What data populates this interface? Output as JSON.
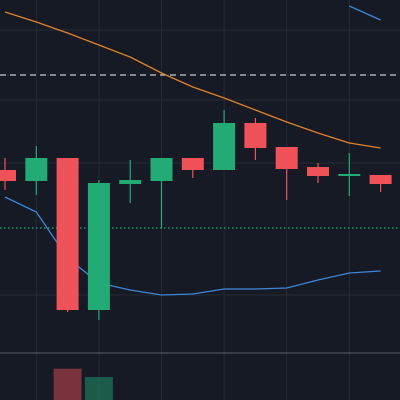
{
  "chart_data": {
    "type": "candlestick",
    "background": "#161a25",
    "grid": true,
    "grid_color": "#262a35",
    "categories": [
      null,
      null,
      null,
      null,
      null,
      null,
      null,
      null,
      null,
      null,
      null,
      null,
      null
    ],
    "ylim": [
      0,
      400
    ],
    "yticks": [
      370,
      300,
      237,
      105
    ],
    "up_color": "#22ab75",
    "down_color": "#f0525a",
    "open": [
      230,
      219,
      242,
      90,
      216,
      219,
      242,
      230,
      277,
      253,
      233,
      224,
      225
    ],
    "high": [
      242,
      254,
      242,
      220,
      240,
      242,
      242,
      290,
      282,
      253,
      237,
      247,
      225
    ],
    "low": [
      210,
      205,
      88,
      80,
      197,
      172,
      222,
      230,
      240,
      200,
      217,
      204,
      208
    ],
    "close": [
      219,
      242,
      90,
      217,
      220,
      242,
      230,
      277,
      252,
      231,
      224,
      226,
      216
    ],
    "series": [
      {
        "color": "#e0822a",
        "values": [
          388,
          378,
          367,
          355,
          343,
          327,
          313,
          302,
          290,
          278,
          267,
          257,
          252
        ]
      },
      {
        "color": "#3d86d6",
        "values": [
          203,
          188,
          142,
          117,
          110,
          105,
          106,
          111,
          111,
          112,
          120,
          127,
          129
        ]
      },
      {
        "color": "#3d86d6",
        "values": [
          null,
          null,
          null,
          null,
          null,
          null,
          null,
          null,
          null,
          null,
          null,
          394,
          380
        ]
      }
    ],
    "levels": [
      {
        "value": 325,
        "color": "#c8cbd2",
        "style": "dashed"
      },
      {
        "value": 172,
        "color": "#22ab75",
        "style": "dotted"
      }
    ],
    "volume": {
      "ylim": [
        0,
        45
      ],
      "values": [
        null,
        null,
        30,
        22,
        null,
        null,
        null,
        null,
        null,
        null,
        null,
        null,
        null
      ]
    }
  }
}
